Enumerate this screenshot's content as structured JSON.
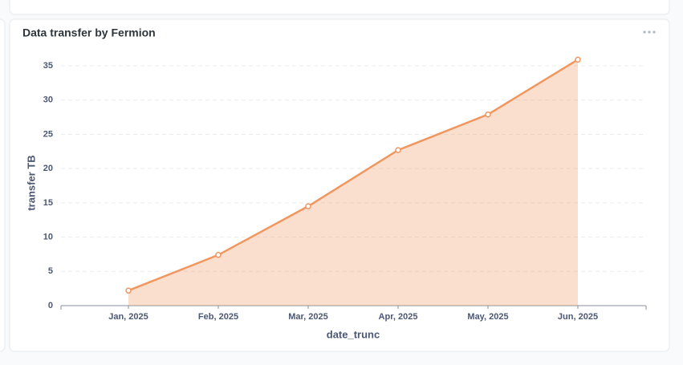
{
  "chart_data": {
    "type": "area",
    "title": "Data transfer by Fermion",
    "x_label": "date_trunc",
    "y_label": "transfer TB",
    "categories": [
      "Jan, 2025",
      "Feb, 2025",
      "Mar, 2025",
      "Apr, 2025",
      "May, 2025",
      "Jun, 2025"
    ],
    "series": [
      {
        "name": "transfer TB",
        "color": "#f0965e",
        "values": [
          2.2,
          7.4,
          14.5,
          22.7,
          27.9,
          35.9
        ]
      }
    ],
    "ylim": [
      0,
      36
    ],
    "yticks": [
      0,
      5,
      10,
      15,
      20,
      25,
      30,
      35
    ],
    "grid": true
  }
}
